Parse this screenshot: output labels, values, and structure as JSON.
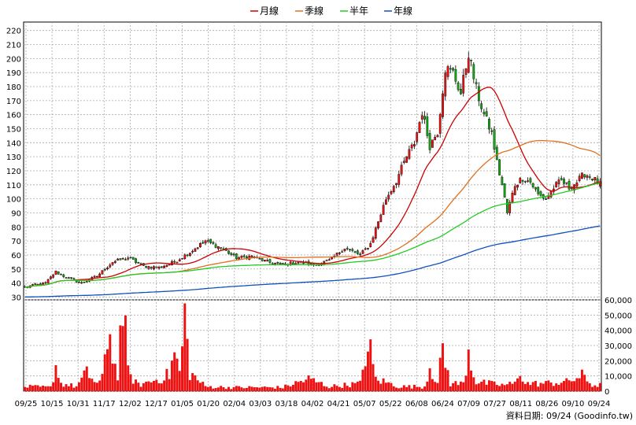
{
  "chart_data": {
    "type": "candlestick",
    "legend": {
      "placement": "top-center",
      "items": [
        {
          "label": "月線",
          "color": "#cc0000"
        },
        {
          "label": "季線",
          "color": "#e07020"
        },
        {
          "label": "半年",
          "color": "#22cc22"
        },
        {
          "label": "年線",
          "color": "#1050c0"
        }
      ]
    },
    "price_axis": {
      "range": [
        28,
        226
      ],
      "ticks": [
        30,
        40,
        50,
        60,
        70,
        80,
        90,
        100,
        110,
        120,
        130,
        140,
        150,
        160,
        170,
        180,
        190,
        200,
        210,
        220
      ],
      "grid": true
    },
    "volume_axis": {
      "range": [
        0,
        60000
      ],
      "ticks": [
        0,
        10000,
        20000,
        30000,
        40000,
        50000,
        60000
      ],
      "tick_labels": [
        "0",
        "10,000",
        "20,000",
        "30,000",
        "40,000",
        "50,000",
        "60,000"
      ]
    },
    "x_ticks": [
      "09/25",
      "10/15",
      "10/31",
      "11/17",
      "12/02",
      "12/17",
      "01/05",
      "01/20",
      "02/04",
      "03/03",
      "03/18",
      "04/02",
      "04/21",
      "05/07",
      "05/22",
      "06/08",
      "06/24",
      "07/09",
      "07/27",
      "08/11",
      "08/26",
      "09/10",
      "09/24"
    ],
    "close_anchors": [
      [
        0,
        37
      ],
      [
        8,
        40
      ],
      [
        12,
        48
      ],
      [
        16,
        44
      ],
      [
        22,
        40
      ],
      [
        28,
        45
      ],
      [
        34,
        55
      ],
      [
        40,
        58
      ],
      [
        46,
        52
      ],
      [
        52,
        51
      ],
      [
        58,
        55
      ],
      [
        64,
        62
      ],
      [
        70,
        70
      ],
      [
        76,
        65
      ],
      [
        82,
        58
      ],
      [
        88,
        59
      ],
      [
        94,
        55
      ],
      [
        100,
        53
      ],
      [
        106,
        55
      ],
      [
        112,
        53
      ],
      [
        118,
        56
      ],
      [
        124,
        65
      ],
      [
        130,
        60
      ],
      [
        134,
        68
      ],
      [
        140,
        100
      ],
      [
        144,
        113
      ],
      [
        148,
        130
      ],
      [
        151,
        140
      ],
      [
        154,
        162
      ],
      [
        157,
        138
      ],
      [
        160,
        148
      ],
      [
        163,
        193
      ],
      [
        166,
        190
      ],
      [
        169,
        175
      ],
      [
        172,
        204
      ],
      [
        175,
        178
      ],
      [
        178,
        160
      ],
      [
        181,
        147
      ],
      [
        183,
        126
      ],
      [
        185,
        110
      ],
      [
        187,
        90
      ],
      [
        190,
        110
      ],
      [
        193,
        115
      ],
      [
        196,
        112
      ],
      [
        199,
        103
      ],
      [
        202,
        100
      ],
      [
        205,
        108
      ],
      [
        208,
        113
      ],
      [
        211,
        108
      ],
      [
        214,
        112
      ],
      [
        217,
        118
      ],
      [
        220,
        115
      ],
      [
        223,
        110
      ]
    ],
    "volume_anchors": [
      [
        0,
        3000
      ],
      [
        10,
        2500
      ],
      [
        12,
        17000
      ],
      [
        14,
        5000
      ],
      [
        20,
        3000
      ],
      [
        24,
        12000
      ],
      [
        28,
        5000
      ],
      [
        30,
        8000
      ],
      [
        32,
        30000
      ],
      [
        33,
        52000
      ],
      [
        34,
        20000
      ],
      [
        36,
        12000
      ],
      [
        38,
        58000
      ],
      [
        40,
        12000
      ],
      [
        44,
        4000
      ],
      [
        52,
        8000
      ],
      [
        56,
        11000
      ],
      [
        58,
        25000
      ],
      [
        60,
        12000
      ],
      [
        62,
        48000
      ],
      [
        64,
        12000
      ],
      [
        70,
        3000
      ],
      [
        80,
        2500
      ],
      [
        100,
        2500
      ],
      [
        110,
        8000
      ],
      [
        118,
        3000
      ],
      [
        130,
        5000
      ],
      [
        132,
        25000
      ],
      [
        134,
        25000
      ],
      [
        136,
        8000
      ],
      [
        145,
        3000
      ],
      [
        155,
        3000
      ],
      [
        157,
        17000
      ],
      [
        160,
        5000
      ],
      [
        162,
        26000
      ],
      [
        165,
        5000
      ],
      [
        170,
        5000
      ],
      [
        172,
        28000
      ],
      [
        173,
        18000
      ],
      [
        175,
        6000
      ],
      [
        185,
        4000
      ],
      [
        190,
        5000
      ],
      [
        192,
        14000
      ],
      [
        194,
        5000
      ],
      [
        200,
        5000
      ],
      [
        210,
        6000
      ],
      [
        216,
        10000
      ],
      [
        220,
        4000
      ],
      [
        223,
        4000
      ]
    ],
    "source_label": "資料日期: 09/24  (Goodinfo.tw)"
  }
}
